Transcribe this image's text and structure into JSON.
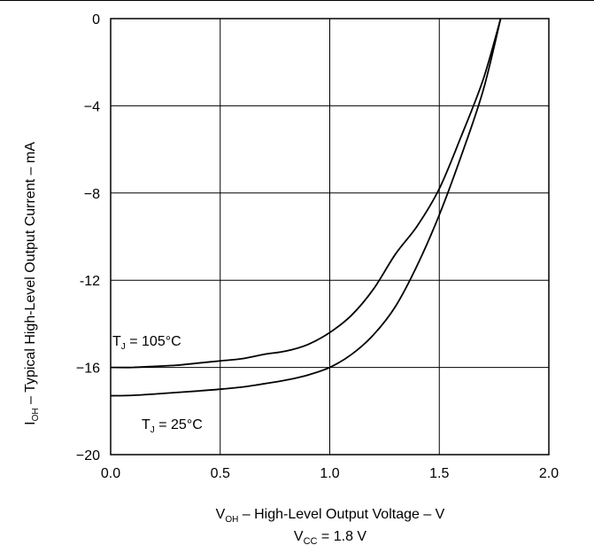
{
  "chart_data": {
    "type": "line",
    "xlabel": {
      "symbol": "V",
      "subscript": "OH",
      "text": " – High-Level Output Voltage – V"
    },
    "ylabel": {
      "symbol": "I",
      "subscript": "OH",
      "text": " – Typical High-Level Output Current – mA"
    },
    "condition": {
      "symbol": "V",
      "subscript": "CC",
      "text": " = 1.8 V"
    },
    "xlim": [
      0.0,
      2.0
    ],
    "ylim": [
      -20,
      0
    ],
    "x_ticks": [
      "0.0",
      "0.5",
      "1.0",
      "1.5",
      "2.0"
    ],
    "y_ticks": [
      "0",
      "−4",
      "−8",
      "-12",
      "−16",
      "−20"
    ],
    "x_tick_values": [
      0.0,
      0.5,
      1.0,
      1.5,
      2.0
    ],
    "y_tick_values": [
      0,
      -4,
      -8,
      -12,
      -16,
      -20
    ],
    "grid": true,
    "series": [
      {
        "name": "105°C",
        "label_symbol": "T",
        "label_subscript": "J",
        "label_text": " = 105°C",
        "x": [
          0.0,
          0.1,
          0.2,
          0.3,
          0.4,
          0.5,
          0.6,
          0.7,
          0.8,
          0.9,
          1.0,
          1.1,
          1.2,
          1.3,
          1.4,
          1.5,
          1.6,
          1.7,
          1.78
        ],
        "y": [
          -16.0,
          -16.0,
          -15.95,
          -15.9,
          -15.8,
          -15.7,
          -15.6,
          -15.4,
          -15.25,
          -14.95,
          -14.4,
          -13.6,
          -12.4,
          -10.8,
          -9.5,
          -7.8,
          -5.4,
          -2.8,
          0.0
        ]
      },
      {
        "name": "25°C",
        "label_symbol": "T",
        "label_subscript": "J",
        "label_text": " = 25°C",
        "x": [
          0.0,
          0.1,
          0.2,
          0.3,
          0.4,
          0.5,
          0.6,
          0.7,
          0.8,
          0.9,
          1.0,
          1.1,
          1.2,
          1.3,
          1.4,
          1.5,
          1.6,
          1.7,
          1.78
        ],
        "y": [
          -17.3,
          -17.28,
          -17.22,
          -17.15,
          -17.08,
          -17.0,
          -16.9,
          -16.75,
          -16.58,
          -16.35,
          -16.0,
          -15.4,
          -14.5,
          -13.2,
          -11.3,
          -9.0,
          -6.3,
          -3.3,
          0.0
        ]
      }
    ]
  }
}
